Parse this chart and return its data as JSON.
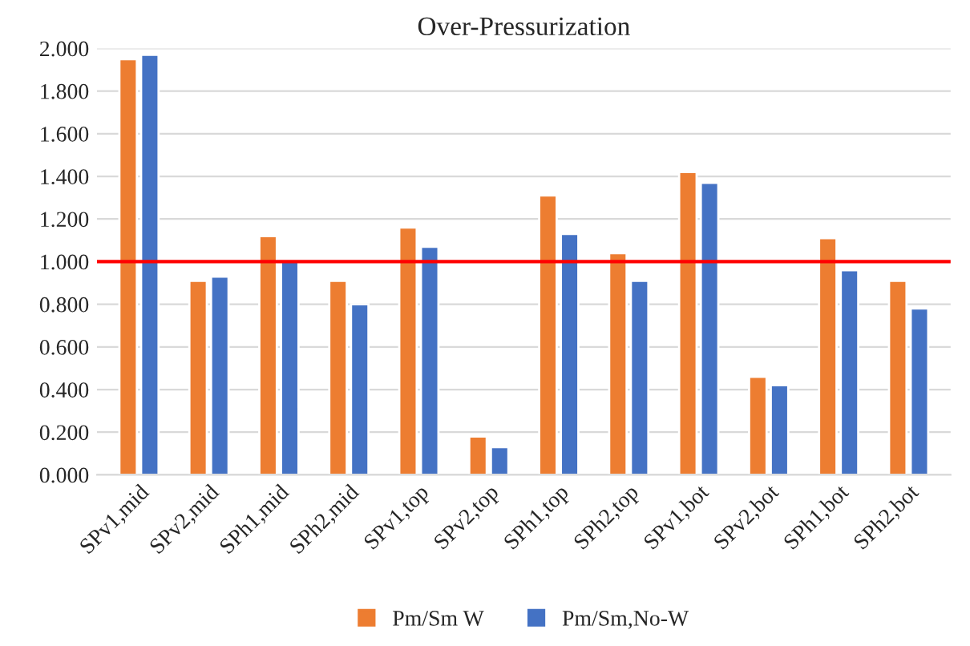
{
  "chart_data": {
    "type": "bar",
    "title": "Over-Pressurization",
    "categories": [
      "SPv1,mid",
      "SPv2,mid",
      "SPh1,mid",
      "SPh2,mid",
      "SPv1,top",
      "SPv2,top",
      "SPh1,top",
      "SPh2,top",
      "SPv1,bot",
      "SPv2,bot",
      "SPh1,bot",
      "SPh2,bot"
    ],
    "series": [
      {
        "name": "Pm/Sm W",
        "color": "#ed7d31",
        "values": [
          1.95,
          0.91,
          1.12,
          0.91,
          1.16,
          0.18,
          1.31,
          1.04,
          1.42,
          0.46,
          1.11,
          0.91
        ]
      },
      {
        "name": "Pm/Sm,No-W",
        "color": "#4472c4",
        "values": [
          1.97,
          0.93,
          1.0,
          0.8,
          1.07,
          0.13,
          1.13,
          0.91,
          1.37,
          0.42,
          0.96,
          0.78
        ]
      }
    ],
    "ylim": [
      0,
      2
    ],
    "yticks": [
      {
        "value": 0,
        "label": "0.000"
      },
      {
        "value": 0.2,
        "label": "0.200"
      },
      {
        "value": 0.4,
        "label": "0.400"
      },
      {
        "value": 0.6,
        "label": "0.600"
      },
      {
        "value": 0.8,
        "label": "0.800"
      },
      {
        "value": 1.0,
        "label": "1.000"
      },
      {
        "value": 1.2,
        "label": "1.200"
      },
      {
        "value": 1.4,
        "label": "1.400"
      },
      {
        "value": 1.6,
        "label": "1.600"
      },
      {
        "value": 1.8,
        "label": "1.800"
      },
      {
        "value": 2.0,
        "label": "2.000"
      }
    ],
    "ref_lines": [
      {
        "axis": "y",
        "value": 1.0,
        "color": "#ff0000",
        "line_style": "solid"
      }
    ],
    "grid": "y",
    "legend": "bottom"
  }
}
